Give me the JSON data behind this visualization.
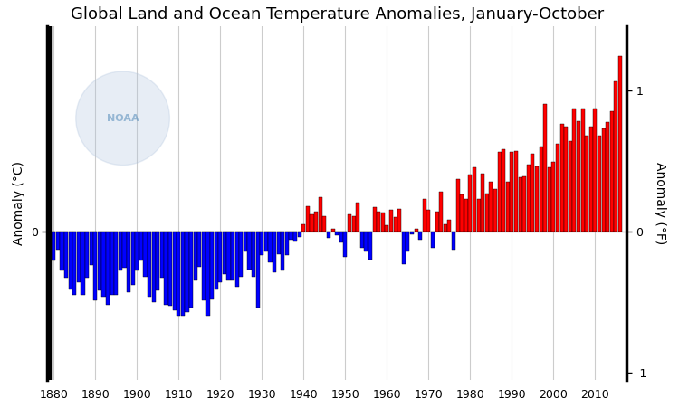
{
  "title": "Global Land and Ocean Temperature Anomalies, January-October",
  "ylabel_left": "Anomaly (°C)",
  "ylabel_right": "Anomaly (°F)",
  "years": [
    1880,
    1881,
    1882,
    1883,
    1884,
    1885,
    1886,
    1887,
    1888,
    1889,
    1890,
    1891,
    1892,
    1893,
    1894,
    1895,
    1896,
    1897,
    1898,
    1899,
    1900,
    1901,
    1902,
    1903,
    1904,
    1905,
    1906,
    1907,
    1908,
    1909,
    1910,
    1911,
    1912,
    1913,
    1914,
    1915,
    1916,
    1917,
    1918,
    1919,
    1920,
    1921,
    1922,
    1923,
    1924,
    1925,
    1926,
    1927,
    1928,
    1929,
    1930,
    1931,
    1932,
    1933,
    1934,
    1935,
    1936,
    1937,
    1938,
    1939,
    1940,
    1941,
    1942,
    1943,
    1944,
    1945,
    1946,
    1947,
    1948,
    1949,
    1950,
    1951,
    1952,
    1953,
    1954,
    1955,
    1956,
    1957,
    1958,
    1959,
    1960,
    1961,
    1962,
    1963,
    1964,
    1965,
    1966,
    1967,
    1968,
    1969,
    1970,
    1971,
    1972,
    1973,
    1974,
    1975,
    1976,
    1977,
    1978,
    1979,
    1980,
    1981,
    1982,
    1983,
    1984,
    1985,
    1986,
    1987,
    1988,
    1989,
    1990,
    1991,
    1992,
    1993,
    1994,
    1995,
    1996,
    1997,
    1998,
    1999,
    2000,
    2001,
    2002,
    2003,
    2004,
    2005,
    2006,
    2007,
    2008,
    2009,
    2010,
    2011,
    2012,
    2013,
    2014,
    2015,
    2016
  ],
  "anomalies_c": [
    -0.21,
    -0.13,
    -0.28,
    -0.33,
    -0.41,
    -0.45,
    -0.36,
    -0.45,
    -0.33,
    -0.24,
    -0.49,
    -0.42,
    -0.46,
    -0.52,
    -0.45,
    -0.45,
    -0.28,
    -0.26,
    -0.43,
    -0.38,
    -0.28,
    -0.21,
    -0.32,
    -0.46,
    -0.5,
    -0.42,
    -0.33,
    -0.52,
    -0.53,
    -0.56,
    -0.6,
    -0.6,
    -0.57,
    -0.54,
    -0.35,
    -0.25,
    -0.49,
    -0.6,
    -0.48,
    -0.41,
    -0.36,
    -0.3,
    -0.35,
    -0.35,
    -0.39,
    -0.32,
    -0.14,
    -0.27,
    -0.32,
    -0.54,
    -0.17,
    -0.14,
    -0.22,
    -0.29,
    -0.16,
    -0.28,
    -0.17,
    -0.06,
    -0.07,
    -0.04,
    0.05,
    0.18,
    0.12,
    0.14,
    0.24,
    0.11,
    -0.05,
    0.02,
    -0.03,
    -0.08,
    -0.18,
    0.12,
    0.11,
    0.2,
    -0.12,
    -0.14,
    -0.2,
    0.17,
    0.14,
    0.13,
    0.04,
    0.15,
    0.1,
    0.16,
    -0.23,
    -0.14,
    -0.02,
    0.02,
    -0.06,
    0.23,
    0.15,
    -0.12,
    0.14,
    0.28,
    0.05,
    0.08,
    -0.13,
    0.37,
    0.26,
    0.23,
    0.4,
    0.45,
    0.23,
    0.41,
    0.27,
    0.35,
    0.3,
    0.56,
    0.58,
    0.35,
    0.56,
    0.57,
    0.38,
    0.39,
    0.47,
    0.55,
    0.46,
    0.6,
    0.9,
    0.45,
    0.49,
    0.62,
    0.76,
    0.74,
    0.64,
    0.87,
    0.78,
    0.87,
    0.68,
    0.74,
    0.87,
    0.68,
    0.73,
    0.77,
    0.85,
    1.06,
    1.24
  ],
  "bar_color_pos": "#FF0000",
  "bar_color_neg": "#0000FF",
  "background_color": "#FFFFFF",
  "ylim_c": [
    -1.05,
    1.45
  ],
  "xlim": [
    1878.5,
    2017.5
  ],
  "xticks": [
    1880,
    1890,
    1900,
    1910,
    1920,
    1930,
    1940,
    1950,
    1960,
    1970,
    1980,
    1990,
    2000,
    2010
  ],
  "yticks_left": [
    0.0
  ],
  "ytick_labels_left": [
    "0"
  ],
  "yticks_right": [
    -1.0,
    0.0,
    1.0
  ],
  "ytick_labels_right": [
    "-1",
    "0",
    "1"
  ],
  "grid_color": "#CCCCCC",
  "title_fontsize": 13,
  "label_fontsize": 10,
  "tick_fontsize": 9,
  "figsize": [
    7.5,
    4.5
  ],
  "dpi": 100
}
